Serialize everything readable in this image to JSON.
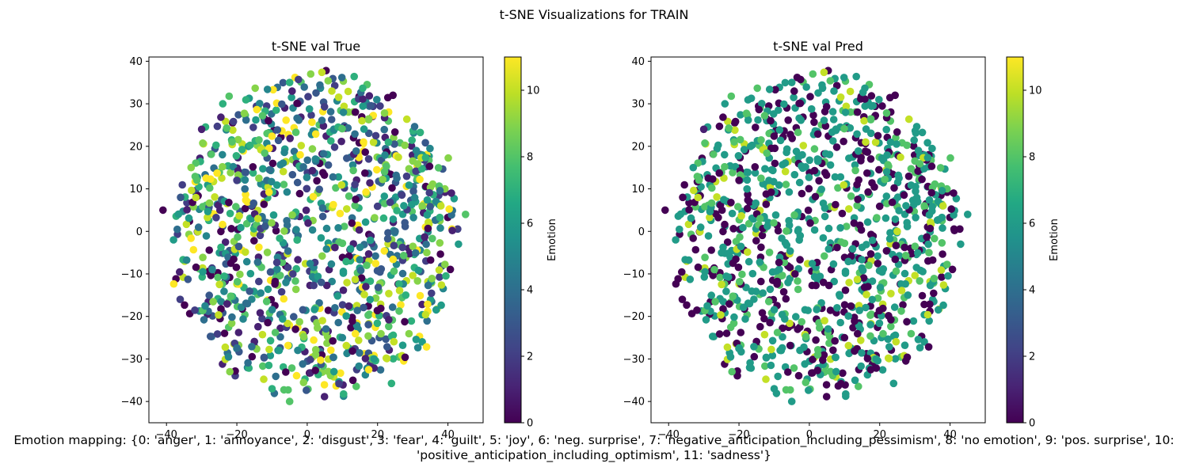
{
  "figure": {
    "suptitle": "t-SNE Visualizations for TRAIN",
    "caption": "Emotion mapping: {0: 'anger', 1: 'annoyance', 2: 'disgust', 3: 'fear', 4: 'guilt', 5: 'joy', 6: 'neg. surprise', 7: 'negative_anticipation_including_pessimism', 8: 'no emotion', 9: 'pos. surprise', 10:\n'positive_anticipation_including_optimism', 11: 'sadness'}"
  },
  "chart_data": [
    {
      "type": "scatter",
      "title": "t-SNE val True",
      "xlabel": "",
      "ylabel": "",
      "xlim": [
        -45,
        50
      ],
      "ylim": [
        -45,
        41
      ],
      "xticks": [
        -40,
        -20,
        0,
        20,
        40
      ],
      "yticks": [
        -40,
        -30,
        -20,
        -10,
        0,
        10,
        20,
        30,
        40
      ],
      "grid": false,
      "colorbar": {
        "label": "Emotion",
        "range": [
          0,
          11
        ],
        "ticks": [
          0,
          2,
          4,
          6,
          8,
          10
        ],
        "colormap": "viridis"
      },
      "point_count_approx": 1100,
      "points": [
        [
          -41,
          5,
          0
        ],
        [
          -38,
          -2,
          6
        ],
        [
          -36,
          8,
          3
        ],
        [
          -33,
          15,
          9
        ],
        [
          -30,
          24,
          1
        ],
        [
          -27,
          -9,
          5
        ],
        [
          -24,
          30,
          7
        ],
        [
          -20,
          12,
          2
        ],
        [
          -17,
          -17,
          4
        ],
        [
          -14,
          3,
          10
        ],
        [
          -11,
          26,
          0
        ],
        [
          -8,
          -28,
          6
        ],
        [
          -5,
          -40,
          8
        ],
        [
          -2,
          18,
          11
        ],
        [
          1,
          37,
          9
        ],
        [
          4,
          -12,
          3
        ],
        [
          7,
          33,
          10
        ],
        [
          10,
          -25,
          5
        ],
        [
          13,
          -35,
          0
        ],
        [
          16,
          21,
          11
        ],
        [
          19,
          -30,
          6
        ],
        [
          22,
          14,
          8
        ],
        [
          25,
          0,
          4
        ],
        [
          28,
          -15,
          7
        ],
        [
          31,
          19,
          5
        ],
        [
          34,
          -5,
          9
        ],
        [
          38,
          6,
          10
        ],
        [
          41,
          9,
          1
        ],
        [
          43,
          -3,
          6
        ],
        [
          45,
          4,
          8
        ],
        [
          -22,
          -33,
          9
        ],
        [
          -10,
          -37,
          7
        ]
      ]
    },
    {
      "type": "scatter",
      "title": "t-SNE val Pred",
      "xlabel": "",
      "ylabel": "",
      "xlim": [
        -45,
        50
      ],
      "ylim": [
        -45,
        41
      ],
      "xticks": [
        -40,
        -20,
        0,
        20,
        40
      ],
      "yticks": [
        -40,
        -30,
        -20,
        -10,
        0,
        10,
        20,
        30,
        40
      ],
      "grid": false,
      "colorbar": {
        "label": "Emotion",
        "range": [
          0,
          11
        ],
        "ticks": [
          0,
          2,
          4,
          6,
          8,
          10
        ],
        "colormap": "viridis"
      },
      "point_count_approx": 1100,
      "points": [
        [
          -41,
          5,
          0
        ],
        [
          -38,
          -2,
          6
        ],
        [
          -36,
          8,
          0
        ],
        [
          -33,
          15,
          6
        ],
        [
          -30,
          24,
          1
        ],
        [
          -27,
          -9,
          8
        ],
        [
          -24,
          30,
          6
        ],
        [
          -20,
          12,
          0
        ],
        [
          -17,
          -17,
          6
        ],
        [
          -14,
          3,
          8
        ],
        [
          -11,
          26,
          0
        ],
        [
          -8,
          -28,
          6
        ],
        [
          -5,
          -40,
          6
        ],
        [
          -2,
          18,
          6
        ],
        [
          1,
          37,
          8
        ],
        [
          4,
          -12,
          0
        ],
        [
          7,
          33,
          6
        ],
        [
          10,
          -25,
          0
        ],
        [
          13,
          -35,
          6
        ],
        [
          16,
          21,
          10
        ],
        [
          19,
          -30,
          6
        ],
        [
          22,
          14,
          6
        ],
        [
          25,
          0,
          10
        ],
        [
          28,
          -15,
          6
        ],
        [
          31,
          19,
          6
        ],
        [
          34,
          -5,
          8
        ],
        [
          38,
          6,
          10
        ],
        [
          41,
          9,
          0
        ],
        [
          43,
          -3,
          6
        ],
        [
          45,
          4,
          6
        ],
        [
          -22,
          -33,
          8
        ],
        [
          -10,
          -37,
          6
        ]
      ]
    }
  ]
}
